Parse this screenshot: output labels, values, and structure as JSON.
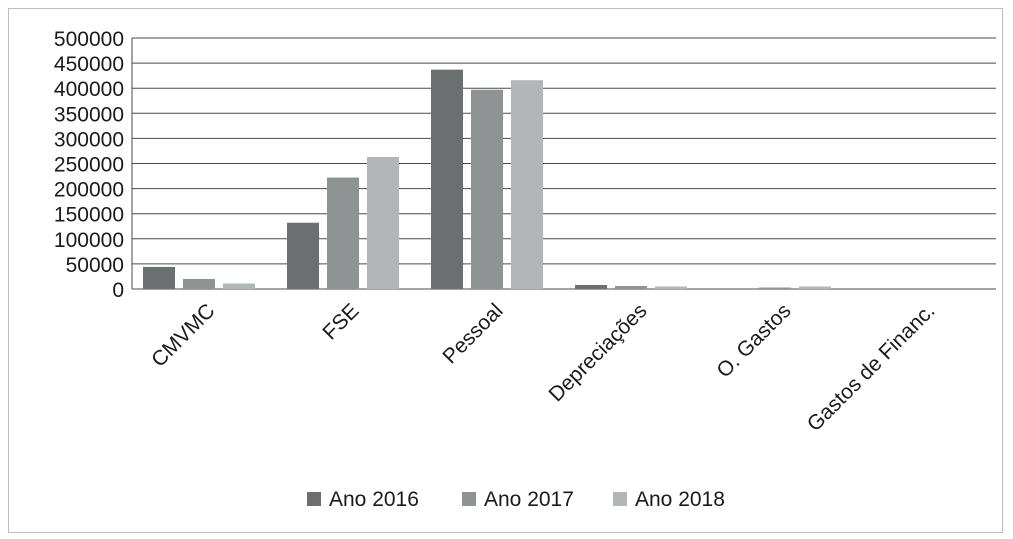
{
  "chart_data": {
    "type": "bar",
    "categories": [
      "CMVMC",
      "FSE",
      "Pessoal",
      "Depreciações",
      "O. Gastos",
      "Gastos de Financ."
    ],
    "series": [
      {
        "name": "Ano 2016",
        "values": [
          44000,
          132000,
          437000,
          8000,
          0,
          0
        ],
        "color": "#6b6f6f"
      },
      {
        "name": "Ano 2017",
        "values": [
          20000,
          222000,
          397000,
          6000,
          3000,
          0
        ],
        "color": "#8f9393"
      },
      {
        "name": "Ano 2018",
        "values": [
          11000,
          263000,
          416000,
          5000,
          5000,
          0
        ],
        "color": "#b3b6b6"
      }
    ],
    "yticks": [
      "0",
      "50000",
      "100000",
      "150000",
      "200000",
      "250000",
      "300000",
      "350000",
      "400000",
      "450000",
      "500000"
    ],
    "ylim": [
      0,
      500000
    ],
    "grid": true,
    "legend_position": "bottom"
  }
}
